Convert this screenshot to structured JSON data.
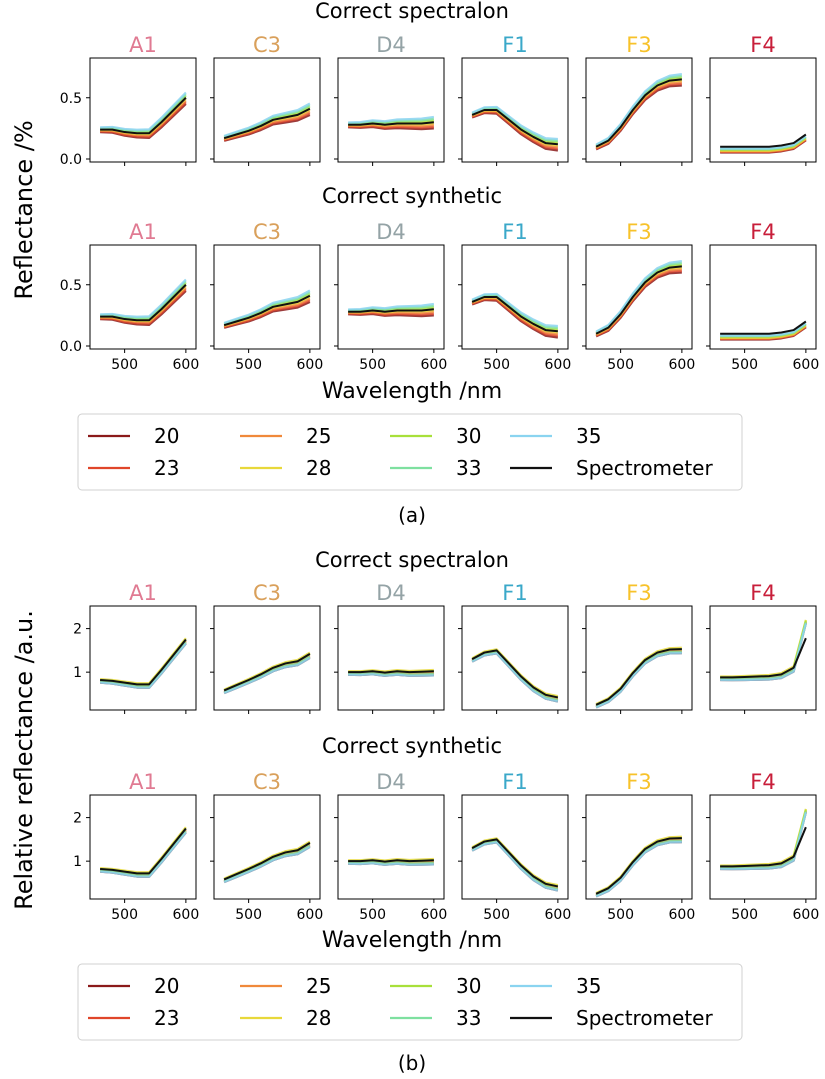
{
  "colors": {
    "A1": "#e07a92",
    "C3": "#d9a05b",
    "D4": "#94a3a6",
    "F1": "#3aa8c9",
    "F3": "#f7c22a",
    "F4": "#c81e3a",
    "20": "#8b1a1a",
    "23": "#e0462a",
    "25": "#f0893a",
    "28": "#e8d83a",
    "30": "#a8e03a",
    "33": "#7ee0a0",
    "35": "#8ad4f0",
    "Spectrometer": "#111111"
  },
  "figures": [
    {
      "label": "(a)",
      "ylabel": "Reflectance /%",
      "xlabel": "Wavelength /nm",
      "rows": [
        {
          "title": "Correct spectralon",
          "samples": [
            "A1",
            "C3",
            "D4",
            "F1",
            "F3",
            "F4"
          ],
          "ylim": [
            0,
            0.8
          ],
          "yticks": [
            "0.0",
            "0.5"
          ],
          "ytick_values": [
            0,
            0.5
          ],
          "show_xticks": false
        },
        {
          "title": "Correct synthetic",
          "samples": [
            "A1",
            "C3",
            "D4",
            "F1",
            "F3",
            "F4"
          ],
          "ylim": [
            0,
            0.8
          ],
          "yticks": [
            "0.0",
            "0.5"
          ],
          "ytick_values": [
            0,
            0.5
          ],
          "show_xticks": true
        }
      ],
      "legend": {
        "col1": [
          "20",
          "23"
        ],
        "col2": [
          "25",
          "28"
        ],
        "col3": [
          "30",
          "33"
        ],
        "col4": [
          "35",
          "Spectrometer"
        ]
      }
    },
    {
      "label": "(b)",
      "ylabel": "Relative reflectance /a.u.",
      "xlabel": "Wavelength /nm",
      "rows": [
        {
          "title": "Correct spectralon",
          "samples": [
            "A1",
            "C3",
            "D4",
            "F1",
            "F3",
            "F4"
          ],
          "ylim": [
            0.2,
            2.45
          ],
          "yticks": [
            "1",
            "2"
          ],
          "ytick_values": [
            1,
            2
          ],
          "show_xticks": false
        },
        {
          "title": "Correct synthetic",
          "samples": [
            "A1",
            "C3",
            "D4",
            "F1",
            "F3",
            "F4"
          ],
          "ylim": [
            0.2,
            2.45
          ],
          "yticks": [
            "1",
            "2"
          ],
          "ytick_values": [
            1,
            2
          ],
          "show_xticks": true
        }
      ],
      "legend": {
        "col1": [
          "20",
          "23"
        ],
        "col2": [
          "25",
          "28"
        ],
        "col3": [
          "30",
          "33"
        ],
        "col4": [
          "35",
          "Spectrometer"
        ]
      }
    }
  ],
  "xticks": [
    "500",
    "600"
  ],
  "xtick_values": [
    500,
    600
  ],
  "xlim": [
    450,
    610
  ],
  "chart_data": {
    "type": "line",
    "x": [
      460,
      480,
      500,
      520,
      540,
      560,
      580,
      600
    ],
    "series_names": [
      "20",
      "23",
      "25",
      "28",
      "30",
      "33",
      "35",
      "Spectrometer"
    ],
    "reflectance_spectrometer": {
      "A1": [
        0.24,
        0.24,
        0.22,
        0.21,
        0.21,
        0.3,
        0.4,
        0.5
      ],
      "C3": [
        0.17,
        0.2,
        0.23,
        0.27,
        0.32,
        0.34,
        0.36,
        0.41
      ],
      "D4": [
        0.28,
        0.28,
        0.29,
        0.28,
        0.29,
        0.29,
        0.29,
        0.3
      ],
      "F1": [
        0.36,
        0.4,
        0.4,
        0.32,
        0.24,
        0.18,
        0.13,
        0.12
      ],
      "F3": [
        0.1,
        0.15,
        0.26,
        0.4,
        0.52,
        0.6,
        0.64,
        0.65
      ],
      "F4": [
        0.1,
        0.1,
        0.1,
        0.1,
        0.1,
        0.11,
        0.13,
        0.2
      ]
    },
    "relative_spectrometer": {
      "A1": [
        0.82,
        0.8,
        0.76,
        0.72,
        0.72,
        1.05,
        1.4,
        1.75
      ],
      "C3": [
        0.58,
        0.7,
        0.82,
        0.95,
        1.1,
        1.2,
        1.25,
        1.42
      ],
      "D4": [
        1.0,
        1.0,
        1.02,
        0.99,
        1.02,
        1.0,
        1.01,
        1.02
      ],
      "F1": [
        1.3,
        1.45,
        1.5,
        1.2,
        0.9,
        0.65,
        0.48,
        0.42
      ],
      "F3": [
        0.25,
        0.38,
        0.62,
        0.98,
        1.28,
        1.45,
        1.52,
        1.53
      ],
      "F4": [
        0.88,
        0.88,
        0.89,
        0.9,
        0.91,
        0.95,
        1.1,
        1.78
      ]
    },
    "xlabel": "Wavelength /nm"
  }
}
